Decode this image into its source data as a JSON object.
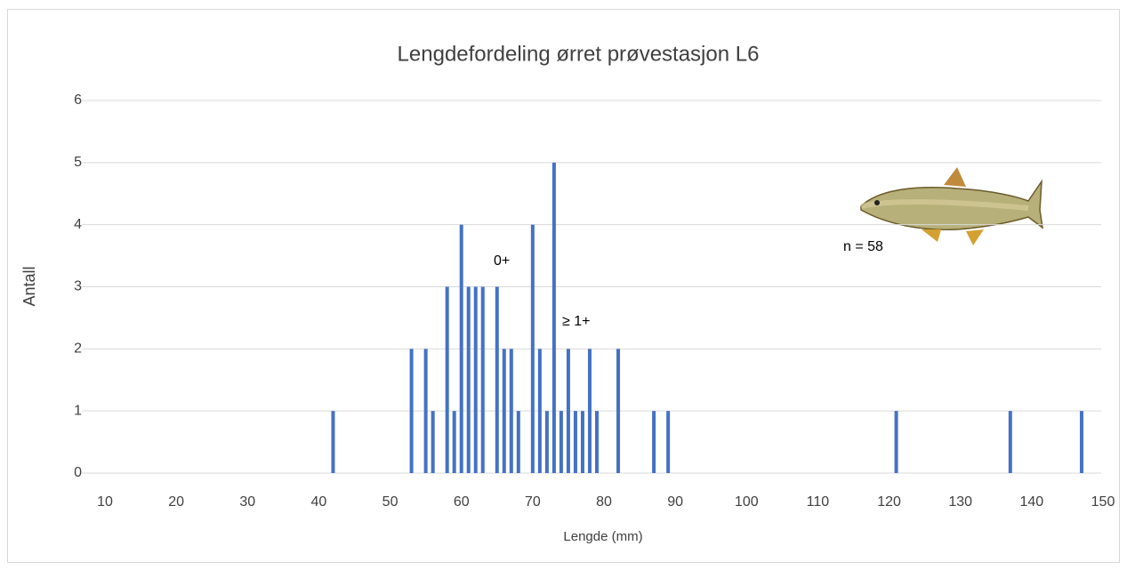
{
  "chart_data": {
    "type": "bar",
    "title": "Lengdefordeling ørret prøvestasjon L6",
    "x_label": "Lengde (mm)",
    "y_label": "Antall",
    "x": [
      42,
      53,
      55,
      56,
      58,
      59,
      60,
      61,
      62,
      63,
      65,
      66,
      67,
      68,
      70,
      71,
      72,
      73,
      74,
      75,
      76,
      77,
      78,
      79,
      82,
      87,
      89,
      121,
      137,
      147
    ],
    "values": [
      1,
      2,
      2,
      1,
      3,
      1,
      4,
      3,
      3,
      3,
      3,
      2,
      2,
      1,
      4,
      2,
      1,
      5,
      1,
      2,
      1,
      1,
      2,
      1,
      2,
      1,
      1,
      1,
      1,
      1
    ],
    "color": "#4472c4",
    "xlim": [
      10,
      150
    ],
    "xticks": [
      10,
      20,
      30,
      40,
      50,
      60,
      70,
      80,
      90,
      100,
      110,
      120,
      130,
      140,
      150
    ],
    "ylim": [
      0,
      6
    ],
    "yticks": [
      0,
      1,
      2,
      3,
      4,
      5,
      6
    ],
    "grid": true,
    "annotations": [
      "0+",
      "≥ 1+",
      "n = 58"
    ]
  }
}
